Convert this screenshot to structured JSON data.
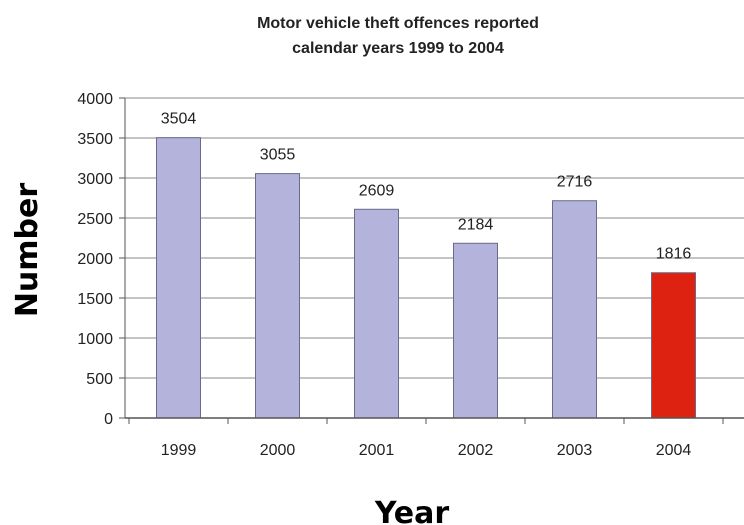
{
  "chart_data": {
    "type": "bar",
    "title": "Motor vehicle theft offences reported",
    "subtitle": "calendar years 1999 to 2004",
    "xlabel": "Year",
    "ylabel": "Number",
    "categories": [
      "1999",
      "2000",
      "2001",
      "2002",
      "2003",
      "2004"
    ],
    "values": [
      3504,
      3055,
      2609,
      2184,
      2716,
      1816
    ],
    "data_labels": [
      "3504",
      "3055",
      "2609",
      "2184",
      "2716",
      "1816"
    ],
    "ylim": [
      0,
      4000
    ],
    "y_ticks": [
      0,
      500,
      1000,
      1500,
      2000,
      2500,
      3000,
      3500,
      4000
    ],
    "y_tick_labels": [
      "0",
      "500",
      "1000",
      "1500",
      "2000",
      "2500",
      "3000",
      "3500",
      "4000"
    ],
    "grid": true,
    "legend": "none",
    "bar_colors": [
      "#b3b3dc",
      "#b3b3dc",
      "#b3b3dc",
      "#b3b3dc",
      "#b3b3dc",
      "#dd2211"
    ]
  }
}
